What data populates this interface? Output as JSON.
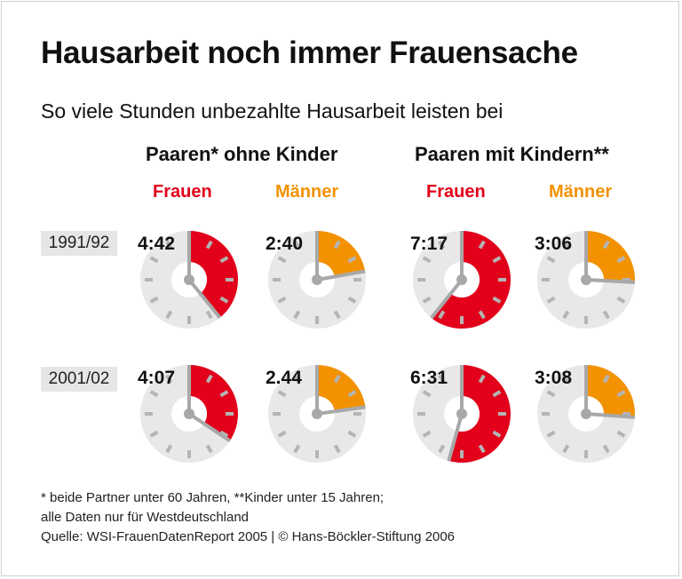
{
  "title": "Hausarbeit noch immer Frauensache",
  "subtitle": "So viele Stunden unbezahlte Hausarbeit leisten bei",
  "groups": [
    "Paaren* ohne Kinder",
    "Paaren mit Kindern**"
  ],
  "sexes": [
    "Frauen",
    "Männer",
    "Frauen",
    "Männer"
  ],
  "years": [
    "1991/92",
    "2001/02"
  ],
  "footnotes": [
    "* beide Partner unter 60 Jahren, **Kinder unter 15 Jahren;",
    "alle Daten nur für Westdeutschland",
    "Quelle: WSI-FrauenDatenReport 2005 | © Hans-Böckler-Stiftung 2006"
  ],
  "colors": {
    "frauen": "#e2001a",
    "maenner": "#f39200",
    "dial": "#e8e8e8",
    "ticks": "#b4b4b4"
  },
  "chart_data": {
    "type": "clock-dial",
    "unit": "hours:minutes",
    "dial_max_hours": 12,
    "categories": [
      "Paaren* ohne Kinder – Frauen",
      "Paaren* ohne Kinder – Männer",
      "Paaren mit Kindern** – Frauen",
      "Paaren mit Kindern** – Männer"
    ],
    "series": [
      {
        "name": "1991/92",
        "labels": [
          "4:42",
          "2:40",
          "7:17",
          "3:06"
        ],
        "hours": [
          4.7,
          2.667,
          7.283,
          3.1
        ]
      },
      {
        "name": "2001/02",
        "labels": [
          "4:07",
          "2.44",
          "6:31",
          "3:08"
        ],
        "hours": [
          4.117,
          2.733,
          6.517,
          3.133
        ]
      }
    ]
  }
}
